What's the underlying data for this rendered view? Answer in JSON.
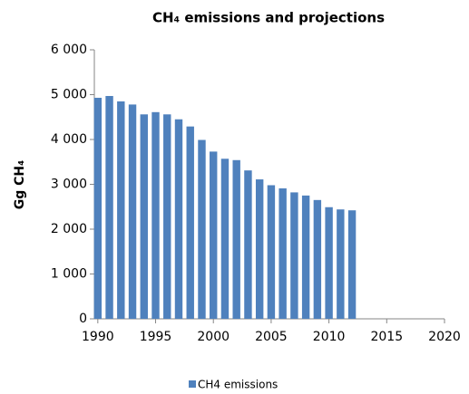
{
  "chart_data": {
    "type": "bar",
    "title": "CH₄ emissions and projections",
    "ylabel": "Gg CH₄",
    "x": [
      1990,
      1991,
      1992,
      1993,
      1994,
      1995,
      1996,
      1997,
      1998,
      1999,
      2000,
      2001,
      2002,
      2003,
      2004,
      2005,
      2006,
      2007,
      2008,
      2009,
      2010,
      2011,
      2012
    ],
    "series": [
      {
        "name": "CH4 emissions",
        "color": "#4f81bd",
        "values": [
          4930,
          4970,
          4850,
          4780,
          4560,
          4610,
          4560,
          4450,
          4290,
          3990,
          3730,
          3570,
          3540,
          3310,
          3110,
          2980,
          2910,
          2820,
          2750,
          2650,
          2490,
          2440,
          2420
        ]
      }
    ],
    "xlim": [
      1989.7,
      2020
    ],
    "xticks": [
      1990,
      1995,
      2000,
      2005,
      2010,
      2015,
      2020
    ],
    "ylim": [
      0,
      6000
    ],
    "yticks": [
      {
        "value": 0,
        "label": "0"
      },
      {
        "value": 1000,
        "label": "1 000"
      },
      {
        "value": 2000,
        "label": "2 000"
      },
      {
        "value": 3000,
        "label": "3 000"
      },
      {
        "value": 4000,
        "label": "4 000"
      },
      {
        "value": 5000,
        "label": "5 000"
      },
      {
        "value": 6000,
        "label": "6 000"
      }
    ],
    "legend": "bottom"
  }
}
